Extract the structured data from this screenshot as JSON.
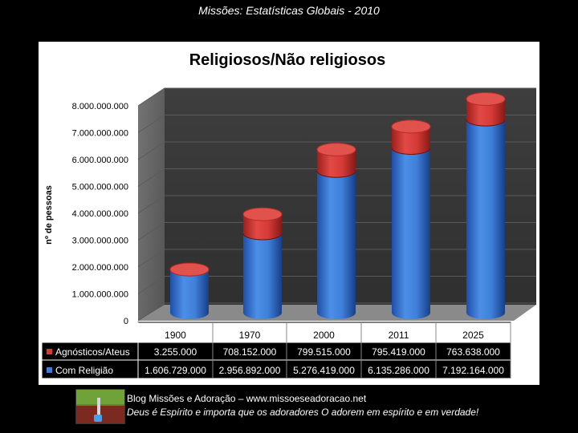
{
  "slide": {
    "title": "Missões: Estatísticas Globais - 2010"
  },
  "colors": {
    "red_series": "#d63a36",
    "blue_series": "#3f7fd8",
    "grid": "#4a4a4a",
    "plot_bg": "#3b3b3b"
  },
  "chart_data": {
    "type": "bar",
    "title": "Religiosos/Não religiosos",
    "ylabel": "nº de pessoas",
    "ylim": [
      0,
      8000000000
    ],
    "yticks": [
      "0",
      "1.000.000.000",
      "2.000.000.000",
      "3.000.000.000",
      "4.000.000.000",
      "5.000.000.000",
      "6.000.000.000",
      "7.000.000.000",
      "8.000.000.000"
    ],
    "categories": [
      "1900",
      "1970",
      "2000",
      "2011",
      "2025"
    ],
    "stacked": true,
    "grid": true,
    "legend": "table-below",
    "series": [
      {
        "name": "Agnósticos/Ateus",
        "color": "#d63a36",
        "values": [
          3255000,
          708152000,
          799515000,
          795419000,
          763638000
        ],
        "labels": [
          "3.255.000",
          "708.152.000",
          "799.515.000",
          "795.419.000",
          "763.638.000"
        ]
      },
      {
        "name": "Com Religião",
        "color": "#3f7fd8",
        "values": [
          1606729000,
          2956892000,
          5276419000,
          6135286000,
          7192164000
        ],
        "labels": [
          "1.606.729.000",
          "2.956.892.000",
          "5.276.419.000",
          "6.135.286.000",
          "7.192.164.000"
        ]
      }
    ]
  },
  "footer": {
    "logo_icon": "blog-logo-icon",
    "line1": "Blog Missões e Adoração – www.missoeseadoracao.net",
    "line2": "Deus é Espírito e importa que os adoradores O adorem em espírito e em verdade!"
  }
}
